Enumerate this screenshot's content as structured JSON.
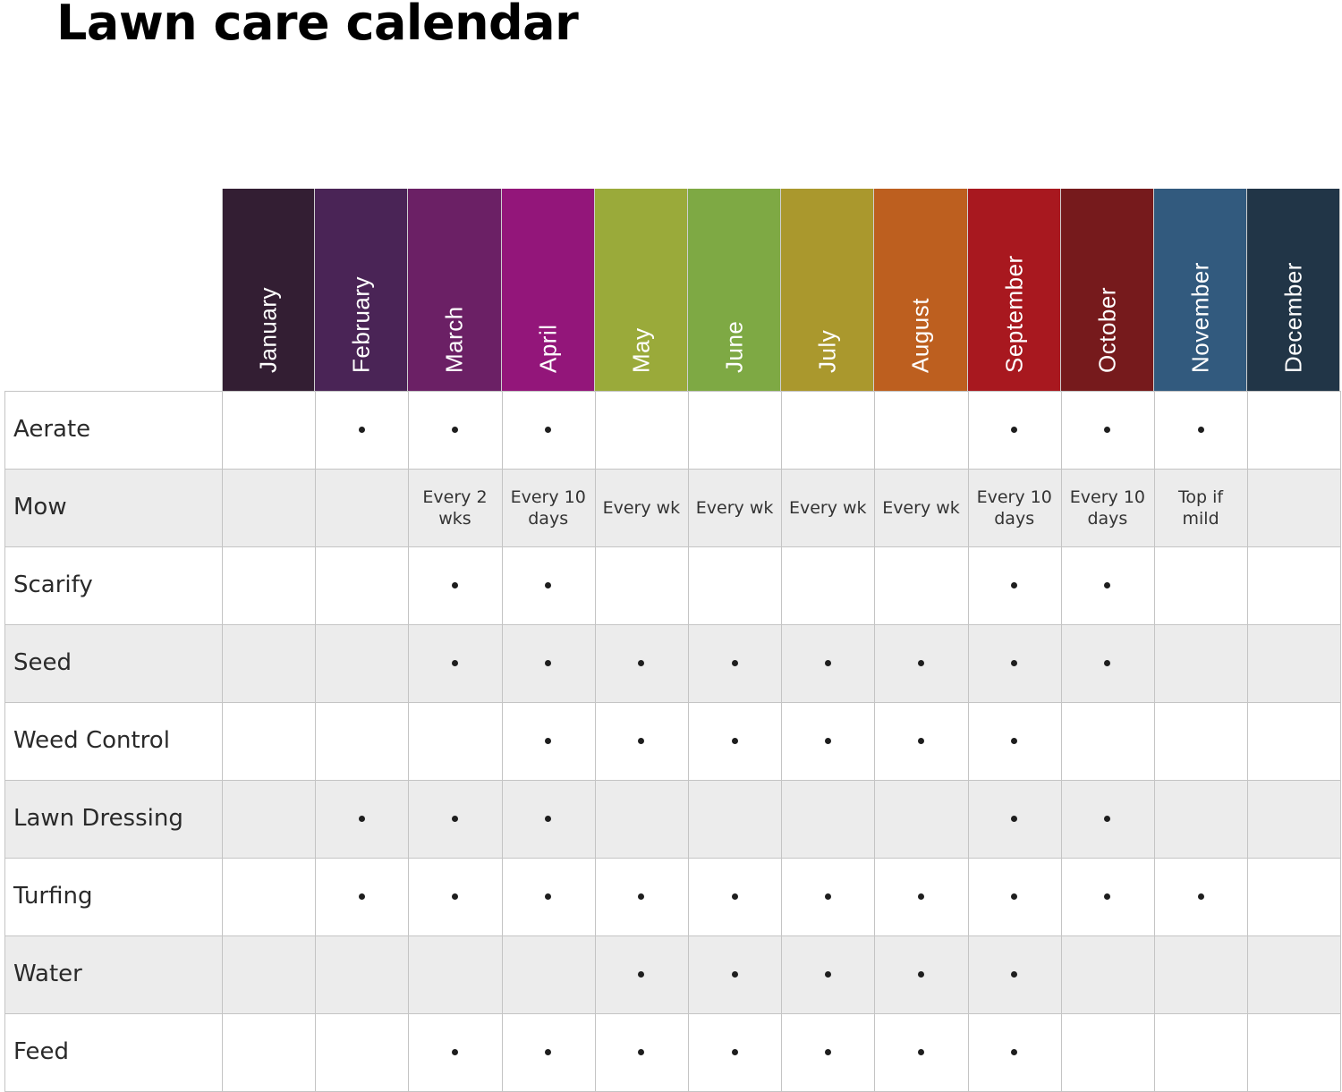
{
  "title": "Lawn care calendar",
  "months": [
    {
      "name": "January",
      "color": "#331e33"
    },
    {
      "name": "February",
      "color": "#4a2456"
    },
    {
      "name": "March",
      "color": "#6b2065"
    },
    {
      "name": "April",
      "color": "#93167a"
    },
    {
      "name": "May",
      "color": "#9aaa3a"
    },
    {
      "name": "June",
      "color": "#7ea944"
    },
    {
      "name": "July",
      "color": "#aa982d"
    },
    {
      "name": "August",
      "color": "#bd5f1f"
    },
    {
      "name": "September",
      "color": "#a8181f"
    },
    {
      "name": "October",
      "color": "#761a1c"
    },
    {
      "name": "November",
      "color": "#325a7e"
    },
    {
      "name": "December",
      "color": "#213547"
    }
  ],
  "row_colors": {
    "odd": "#ffffff",
    "even": "#ececec"
  },
  "chart_data": {
    "type": "table",
    "title": "Lawn care calendar",
    "columns": [
      "January",
      "February",
      "March",
      "April",
      "May",
      "June",
      "July",
      "August",
      "September",
      "October",
      "November",
      "December"
    ],
    "rows": [
      {
        "task": "Aerate",
        "cells": [
          "",
          "•",
          "•",
          "•",
          "",
          "",
          "",
          "",
          "•",
          "•",
          "•",
          ""
        ]
      },
      {
        "task": "Mow",
        "cells": [
          "",
          "",
          "Every 2 wks",
          "Every 10 days",
          "Every wk",
          "Every wk",
          "Every wk",
          "Every wk",
          "Every 10 days",
          "Every 10 days",
          "Top if mild",
          ""
        ]
      },
      {
        "task": "Scarify",
        "cells": [
          "",
          "",
          "•",
          "•",
          "",
          "",
          "",
          "",
          "•",
          "•",
          "",
          ""
        ]
      },
      {
        "task": "Seed",
        "cells": [
          "",
          "",
          "•",
          "•",
          "•",
          "•",
          "•",
          "•",
          "•",
          "•",
          "",
          ""
        ]
      },
      {
        "task": "Weed Control",
        "cells": [
          "",
          "",
          "",
          "•",
          "•",
          "•",
          "•",
          "•",
          "•",
          "",
          "",
          ""
        ]
      },
      {
        "task": "Lawn Dressing",
        "cells": [
          "",
          "•",
          "•",
          "•",
          "",
          "",
          "",
          "",
          "•",
          "•",
          "",
          ""
        ]
      },
      {
        "task": "Turfing",
        "cells": [
          "",
          "•",
          "•",
          "•",
          "•",
          "•",
          "•",
          "•",
          "•",
          "•",
          "•",
          ""
        ]
      },
      {
        "task": "Water",
        "cells": [
          "",
          "",
          "",
          "",
          "•",
          "•",
          "•",
          "•",
          "•",
          "",
          "",
          ""
        ]
      },
      {
        "task": "Feed",
        "cells": [
          "",
          "",
          "•",
          "•",
          "•",
          "•",
          "•",
          "•",
          "•",
          "",
          "",
          ""
        ]
      }
    ]
  }
}
